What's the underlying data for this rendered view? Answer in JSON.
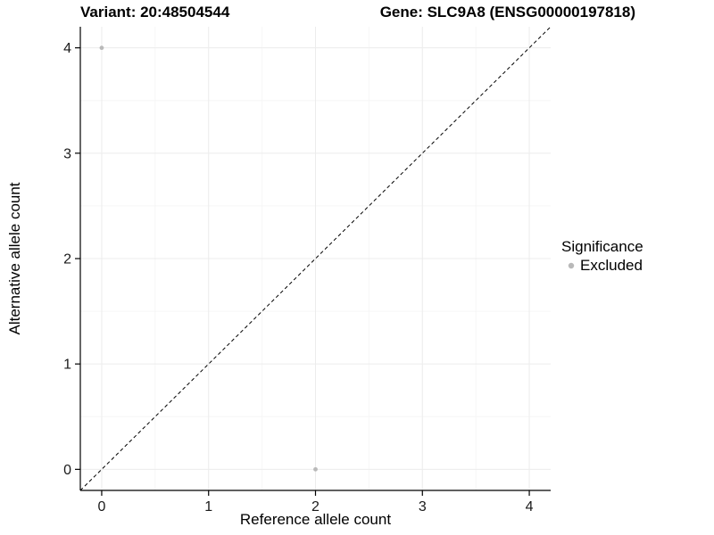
{
  "chart_data": {
    "type": "scatter",
    "titles": {
      "left": "Variant: 20:48504544",
      "right": "Gene: SLC9A8 (ENSG00000197818)"
    },
    "xlabel": "Reference allele count",
    "ylabel": "Alternative allele count",
    "xlim": [
      -0.2,
      4.2
    ],
    "ylim": [
      -0.2,
      4.2
    ],
    "xticks": [
      0,
      1,
      2,
      3,
      4
    ],
    "yticks": [
      0,
      1,
      2,
      3,
      4
    ],
    "grid": true,
    "identity_line": {
      "style": "dashed",
      "slope": 1,
      "intercept": 0,
      "color": "#000000"
    },
    "points": [
      {
        "x": 0,
        "y": 4,
        "significance": "Excluded"
      },
      {
        "x": 2,
        "y": 0,
        "significance": "Excluded"
      }
    ],
    "point_color": "#b9b9b9",
    "legend": {
      "title": "Significance",
      "position": "right",
      "entries": [
        {
          "label": "Excluded",
          "color": "#b9b9b9"
        }
      ]
    },
    "colors": {
      "axis": "#000000",
      "title_text": "#000000",
      "tick_text": "#1a1a1a",
      "grid_major": "#ececec",
      "grid_minor": "#f6f6f6",
      "background": "#ffffff"
    }
  }
}
